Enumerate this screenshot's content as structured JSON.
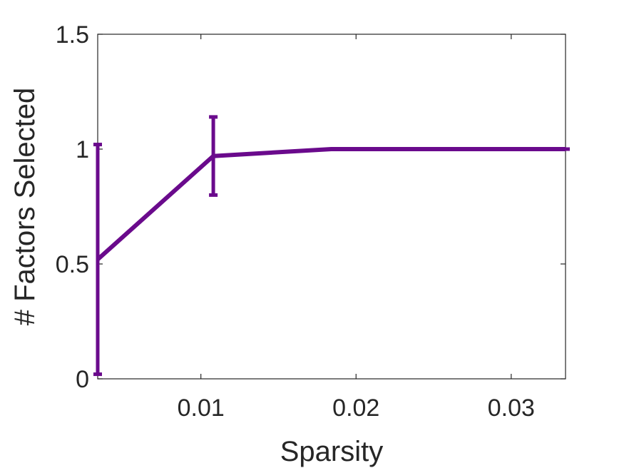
{
  "chart_data": {
    "type": "line",
    "title": "",
    "xlabel": "Sparsity",
    "ylabel": "# Factors Selected",
    "xlim": [
      0.00335,
      0.0335
    ],
    "ylim": [
      0,
      1.5
    ],
    "xticks": [
      0.01,
      0.02,
      0.03
    ],
    "xtick_labels": [
      "0.01",
      "0.02",
      "0.03"
    ],
    "yticks": [
      0,
      0.5,
      1,
      1.5
    ],
    "ytick_labels": [
      "0",
      "0.5",
      "1",
      "1.5"
    ],
    "grid": false,
    "box": true,
    "series": [
      {
        "color": "#6a0a8c",
        "x": [
          0.00335,
          0.0108,
          0.0184,
          0.0259,
          0.0335
        ],
        "y": [
          0.52,
          0.97,
          1.0,
          1.0,
          1.0
        ],
        "err_low": [
          0.02,
          0.8,
          1.0,
          1.0,
          1.0
        ],
        "err_high": [
          1.02,
          1.14,
          1.0,
          1.0,
          1.0
        ]
      }
    ]
  }
}
